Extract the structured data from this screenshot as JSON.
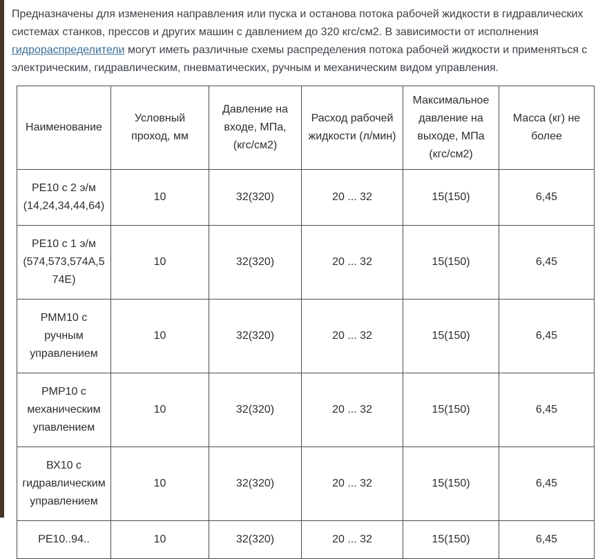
{
  "colors": {
    "left_bar": "#473628",
    "link": "#3a6d94",
    "table_border": "#4a4a4a",
    "body_text": "#3b4148"
  },
  "intro": {
    "text_before_link": "Предназначены для изменения направления или пуска и останова потока рабочей жидкости в гидравлических системах станков, прессов и других машин с давлением до 320 кгс/см2. В зависимости от исполнения",
    "link_text": "гидрораспределители",
    "text_after_link": "могут иметь различные схемы распределения потока рабочей жидкости и применяться с электрическим, гидравлическим, пневматических, ручным и механическим видом управления."
  },
  "table": {
    "headers": [
      "Наименование",
      "Условный проход, мм",
      "Давление на входе, МПа, (кгс/см2)",
      "Расход рабочей жидкости (л/мин)",
      "Максимальное давление на выходе, МПа (кгс/см2)",
      "Масса (кг) не более"
    ],
    "rows": [
      [
        "РЕ10 с 2 э/м (14,24,34,44,64)",
        "10",
        "32(320)",
        "20 ... 32",
        "15(150)",
        "6,45"
      ],
      [
        "РЕ10 с 1 э/м (574,573,574А,574Е)",
        "10",
        "32(320)",
        "20 ... 32",
        "15(150)",
        "6,45"
      ],
      [
        "РММ10 с ручным управлением",
        "10",
        "32(320)",
        "20 ... 32",
        "15(150)",
        "6,45"
      ],
      [
        "РМР10 с механическим упавлением",
        "10",
        "32(320)",
        "20 ... 32",
        "15(150)",
        "6,45"
      ],
      [
        "ВХ10 с гидравлическим управлением",
        "10",
        "32(320)",
        "20 ... 32",
        "15(150)",
        "6,45"
      ],
      [
        "РЕ10..94..",
        "10",
        "32(320)",
        "20 ... 32",
        "15(150)",
        "6,45"
      ]
    ]
  }
}
